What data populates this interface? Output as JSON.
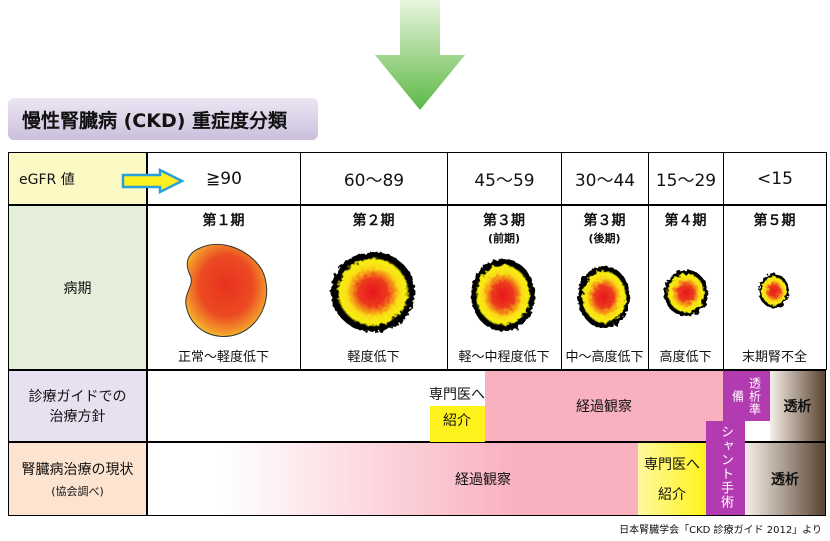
{
  "title": "慢性腎臓病 (CKD) 重症度分類",
  "table": {
    "egfr_label": "eGFR 値",
    "egfr": [
      "≧90",
      "60～89",
      "45～59",
      "30～44",
      "15～29",
      "<15"
    ],
    "stage_label": "病期",
    "stages": [
      {
        "name": "第１期",
        "desc": "正常～軽度低下"
      },
      {
        "name": "第２期",
        "desc": "軽度低下"
      },
      {
        "name": "第３期",
        "note": "(前期)",
        "desc": "軽～中程度低下"
      },
      {
        "name": "第３期",
        "note": "(後期)",
        "desc": "中～高度低下"
      },
      {
        "name": "第４期",
        "desc": "高度低下"
      },
      {
        "name": "第５期",
        "desc": "末期腎不全"
      }
    ],
    "guide_label": [
      "診療ガイドでの",
      "治療方針"
    ],
    "guide": {
      "referral": [
        "専門医へ",
        "紹介"
      ],
      "observation": "経過観察",
      "prep": "透析準備",
      "dialysis": "透析"
    },
    "current_label": [
      "腎臓病治療の現状",
      "(協会調べ)"
    ],
    "current": {
      "observation": "経過観察",
      "referral": [
        "専門医へ",
        "紹介"
      ],
      "shunt": "シャント手術",
      "dialysis": "透析"
    }
  },
  "source": "日本腎臓学会「CKD 診療ガイド 2012」より"
}
